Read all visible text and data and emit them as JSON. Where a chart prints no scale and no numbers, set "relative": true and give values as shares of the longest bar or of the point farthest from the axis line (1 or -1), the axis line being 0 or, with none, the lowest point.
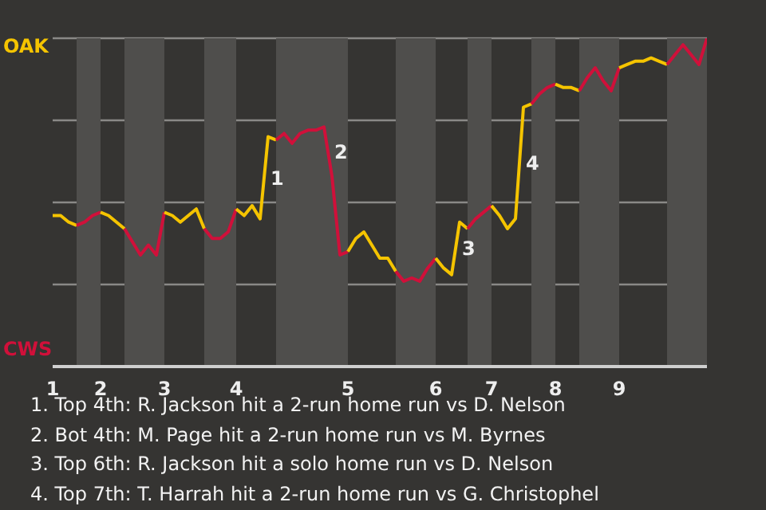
{
  "chart_data": {
    "type": "line",
    "relative": true,
    "categories": [
      "1",
      null,
      null,
      null,
      null,
      null,
      "2",
      null,
      null,
      null,
      null,
      null,
      null,
      null,
      "3",
      null,
      null,
      null,
      null,
      null,
      null,
      null,
      null,
      "4",
      null,
      null,
      null,
      null,
      null,
      null,
      null,
      null,
      null,
      null,
      null,
      null,
      null,
      "5",
      null,
      null,
      null,
      null,
      null,
      null,
      null,
      null,
      null,
      null,
      "6",
      null,
      null,
      null,
      null,
      null,
      null,
      "7",
      null,
      null,
      null,
      null,
      null,
      null,
      null,
      "8",
      null,
      null,
      null,
      null,
      null,
      null,
      null,
      "9",
      null,
      null,
      null,
      null,
      null,
      null,
      null,
      null,
      null,
      null,
      null
    ],
    "grid": "y",
    "marker": "none",
    "line_style": "solid",
    "series": [
      {
        "name": "OAK",
        "color": "#f5c400",
        "values": [
          0.46,
          0.46,
          0.44,
          0.43,
          null,
          null,
          null,
          null,
          null,
          null,
          null,
          null,
          null,
          null,
          null,
          null,
          null,
          null,
          null,
          null,
          null,
          null,
          null,
          null,
          null,
          null,
          null,
          null,
          null,
          null,
          null,
          null,
          null,
          null,
          null,
          null,
          null,
          null,
          null,
          null,
          null,
          null,
          null,
          null,
          null,
          null,
          null,
          null,
          null,
          null,
          null,
          null,
          null,
          null,
          null,
          null,
          null,
          null,
          null,
          null,
          null,
          null,
          null,
          null,
          null,
          null,
          null,
          null,
          null,
          null,
          null,
          null,
          null,
          null,
          null,
          null,
          null,
          null,
          null,
          null,
          null,
          null,
          null
        ]
      },
      {
        "name": "CWS",
        "color": "#d0103a",
        "values": [
          null,
          null,
          null,
          0.43,
          0.44,
          0.46,
          0.47,
          null,
          null,
          null,
          null,
          null,
          null,
          null,
          null,
          null,
          null,
          null,
          null,
          null,
          null,
          null,
          null,
          null,
          null,
          null,
          null,
          null,
          null,
          null,
          null,
          null,
          null,
          null,
          null,
          null,
          null,
          null,
          null,
          null,
          null,
          null,
          null,
          null,
          null,
          null,
          null,
          null,
          null,
          null,
          null,
          null,
          null,
          null,
          null,
          null,
          null,
          null,
          null,
          null,
          null,
          null,
          null,
          null,
          null,
          null,
          null,
          null,
          null,
          null,
          null,
          null,
          null,
          null,
          null,
          null,
          null,
          null,
          null,
          null,
          null,
          null,
          null
        ]
      },
      {
        "color": "#f5c400",
        "values": [
          null,
          null,
          null,
          null,
          null,
          null,
          0.47,
          0.46,
          0.44,
          0.42,
          null,
          null,
          null,
          null,
          null,
          null,
          null,
          null,
          null,
          null,
          null,
          null,
          null,
          null,
          null,
          null,
          null,
          null,
          null,
          null,
          null,
          null,
          null,
          null,
          null,
          null,
          null,
          null,
          null,
          null,
          null,
          null,
          null,
          null,
          null,
          null,
          null,
          null,
          null,
          null,
          null,
          null,
          null,
          null,
          null,
          null,
          null,
          null,
          null,
          null,
          null,
          null,
          null,
          null,
          null,
          null,
          null,
          null,
          null,
          null,
          null,
          null,
          null,
          null,
          null,
          null,
          null,
          null,
          null,
          null,
          null,
          null,
          null
        ]
      },
      {
        "color": "#d0103a",
        "values": [
          null,
          null,
          null,
          null,
          null,
          null,
          null,
          null,
          null,
          0.42,
          0.38,
          0.34,
          0.37,
          0.34,
          0.47,
          null,
          null,
          null,
          null,
          null,
          null,
          null,
          null,
          null,
          null,
          null,
          null,
          null,
          null,
          null,
          null,
          null,
          null,
          null,
          null,
          null,
          null,
          null,
          null,
          null,
          null,
          null,
          null,
          null,
          null,
          null,
          null,
          null,
          null,
          null,
          null,
          null,
          null,
          null,
          null,
          null,
          null,
          null,
          null,
          null,
          null,
          null,
          null,
          null,
          null,
          null,
          null,
          null,
          null,
          null,
          null,
          null,
          null,
          null,
          null,
          null,
          null,
          null,
          null,
          null,
          null,
          null,
          null
        ]
      },
      {
        "color": "#f5c400",
        "values": [
          null,
          null,
          null,
          null,
          null,
          null,
          null,
          null,
          null,
          null,
          null,
          null,
          null,
          null,
          0.47,
          0.46,
          0.44,
          0.46,
          0.48,
          0.42,
          null,
          null,
          null,
          null,
          null,
          null,
          null,
          null,
          null,
          null,
          null,
          null,
          null,
          null,
          null,
          null,
          null,
          null,
          null,
          null,
          null,
          null,
          null,
          null,
          null,
          null,
          null,
          null,
          null,
          null,
          null,
          null,
          null,
          null,
          null,
          null,
          null,
          null,
          null,
          null,
          null,
          null,
          null,
          null,
          null,
          null,
          null,
          null,
          null,
          null,
          null,
          null,
          null,
          null,
          null,
          null,
          null,
          null,
          null,
          null,
          null,
          null,
          null
        ]
      },
      {
        "color": "#d0103a",
        "values": [
          null,
          null,
          null,
          null,
          null,
          null,
          null,
          null,
          null,
          null,
          null,
          null,
          null,
          null,
          null,
          null,
          null,
          null,
          null,
          0.42,
          0.39,
          0.39,
          0.41,
          0.48,
          null,
          null,
          null,
          null,
          null,
          null,
          null,
          null,
          null,
          null,
          null,
          null,
          null,
          null,
          null,
          null,
          null,
          null,
          null,
          null,
          null,
          null,
          null,
          null,
          null,
          null,
          null,
          null,
          null,
          null,
          null,
          null,
          null,
          null,
          null,
          null,
          null,
          null,
          null,
          null,
          null,
          null,
          null,
          null,
          null,
          null,
          null,
          null,
          null,
          null,
          null,
          null,
          null,
          null,
          null,
          null,
          null,
          null,
          null
        ]
      },
      {
        "color": "#f5c400",
        "values": [
          null,
          null,
          null,
          null,
          null,
          null,
          null,
          null,
          null,
          null,
          null,
          null,
          null,
          null,
          null,
          null,
          null,
          null,
          null,
          null,
          null,
          null,
          null,
          0.48,
          0.46,
          0.49,
          0.45,
          0.7,
          0.69,
          null,
          null,
          null,
          null,
          null,
          null,
          null,
          null,
          null,
          null,
          null,
          null,
          null,
          null,
          null,
          null,
          null,
          null,
          null,
          null,
          null,
          null,
          null,
          null,
          null,
          null,
          null,
          null,
          null,
          null,
          null,
          null,
          null,
          null,
          null,
          null,
          null,
          null,
          null,
          null,
          null,
          null,
          null,
          null,
          null,
          null,
          null,
          null,
          null,
          null,
          null,
          null,
          null,
          null
        ]
      },
      {
        "color": "#d0103a",
        "values": [
          null,
          null,
          null,
          null,
          null,
          null,
          null,
          null,
          null,
          null,
          null,
          null,
          null,
          null,
          null,
          null,
          null,
          null,
          null,
          null,
          null,
          null,
          null,
          null,
          null,
          null,
          null,
          null,
          0.69,
          0.71,
          0.68,
          0.71,
          0.72,
          0.72,
          0.73,
          0.58,
          0.34,
          0.35,
          null,
          null,
          null,
          null,
          null,
          null,
          null,
          null,
          null,
          null,
          null,
          null,
          null,
          null,
          null,
          null,
          null,
          null,
          null,
          null,
          null,
          null,
          null,
          null,
          null,
          null,
          null,
          null,
          null,
          null,
          null,
          null,
          null,
          null,
          null,
          null,
          null,
          null,
          null,
          null,
          null,
          null,
          null,
          null,
          null
        ]
      },
      {
        "color": "#f5c400",
        "values": [
          null,
          null,
          null,
          null,
          null,
          null,
          null,
          null,
          null,
          null,
          null,
          null,
          null,
          null,
          null,
          null,
          null,
          null,
          null,
          null,
          null,
          null,
          null,
          null,
          null,
          null,
          null,
          null,
          null,
          null,
          null,
          null,
          null,
          null,
          null,
          null,
          null,
          0.35,
          0.39,
          0.41,
          0.37,
          0.33,
          0.33,
          0.29,
          null,
          null,
          null,
          null,
          null,
          null,
          null,
          null,
          null,
          null,
          null,
          null,
          null,
          null,
          null,
          null,
          null,
          null,
          null,
          null,
          null,
          null,
          null,
          null,
          null,
          null,
          null,
          null,
          null,
          null,
          null,
          null,
          null,
          null,
          null,
          null,
          null,
          null,
          null
        ]
      },
      {
        "color": "#d0103a",
        "values": [
          null,
          null,
          null,
          null,
          null,
          null,
          null,
          null,
          null,
          null,
          null,
          null,
          null,
          null,
          null,
          null,
          null,
          null,
          null,
          null,
          null,
          null,
          null,
          null,
          null,
          null,
          null,
          null,
          null,
          null,
          null,
          null,
          null,
          null,
          null,
          null,
          null,
          null,
          null,
          null,
          null,
          null,
          null,
          0.29,
          0.26,
          0.27,
          0.26,
          0.3,
          0.33,
          null,
          null,
          null,
          null,
          null,
          null,
          null,
          null,
          null,
          null,
          null,
          null,
          null,
          null,
          null,
          null,
          null,
          null,
          null,
          null,
          null,
          null,
          null,
          null,
          null,
          null,
          null,
          null,
          null,
          null,
          null,
          null,
          null,
          null
        ]
      },
      {
        "color": "#f5c400",
        "values": [
          null,
          null,
          null,
          null,
          null,
          null,
          null,
          null,
          null,
          null,
          null,
          null,
          null,
          null,
          null,
          null,
          null,
          null,
          null,
          null,
          null,
          null,
          null,
          null,
          null,
          null,
          null,
          null,
          null,
          null,
          null,
          null,
          null,
          null,
          null,
          null,
          null,
          null,
          null,
          null,
          null,
          null,
          null,
          null,
          null,
          null,
          null,
          null,
          0.33,
          0.3,
          0.28,
          0.44,
          0.42,
          null,
          null,
          null,
          null,
          null,
          null,
          null,
          null,
          null,
          null,
          null,
          null,
          null,
          null,
          null,
          null,
          null,
          null,
          null,
          null,
          null,
          null,
          null,
          null,
          null,
          null,
          null,
          null,
          null,
          null
        ]
      },
      {
        "color": "#d0103a",
        "values": [
          null,
          null,
          null,
          null,
          null,
          null,
          null,
          null,
          null,
          null,
          null,
          null,
          null,
          null,
          null,
          null,
          null,
          null,
          null,
          null,
          null,
          null,
          null,
          null,
          null,
          null,
          null,
          null,
          null,
          null,
          null,
          null,
          null,
          null,
          null,
          null,
          null,
          null,
          null,
          null,
          null,
          null,
          null,
          null,
          null,
          null,
          null,
          null,
          null,
          null,
          null,
          null,
          0.42,
          0.45,
          0.47,
          0.49,
          null,
          null,
          null,
          null,
          null,
          null,
          null,
          null,
          null,
          null,
          null,
          null,
          null,
          null,
          null,
          null,
          null,
          null,
          null,
          null,
          null,
          null,
          null,
          null,
          null,
          null,
          null
        ]
      },
      {
        "color": "#f5c400",
        "values": [
          null,
          null,
          null,
          null,
          null,
          null,
          null,
          null,
          null,
          null,
          null,
          null,
          null,
          null,
          null,
          null,
          null,
          null,
          null,
          null,
          null,
          null,
          null,
          null,
          null,
          null,
          null,
          null,
          null,
          null,
          null,
          null,
          null,
          null,
          null,
          null,
          null,
          null,
          null,
          null,
          null,
          null,
          null,
          null,
          null,
          null,
          null,
          null,
          null,
          null,
          null,
          null,
          null,
          null,
          null,
          0.49,
          0.46,
          0.42,
          0.45,
          0.79,
          0.8,
          null,
          null,
          null,
          null,
          null,
          null,
          null,
          null,
          null,
          null,
          null,
          null,
          null,
          null,
          null,
          null,
          null,
          null,
          null,
          null,
          null,
          null
        ]
      },
      {
        "color": "#d0103a",
        "values": [
          null,
          null,
          null,
          null,
          null,
          null,
          null,
          null,
          null,
          null,
          null,
          null,
          null,
          null,
          null,
          null,
          null,
          null,
          null,
          null,
          null,
          null,
          null,
          null,
          null,
          null,
          null,
          null,
          null,
          null,
          null,
          null,
          null,
          null,
          null,
          null,
          null,
          null,
          null,
          null,
          null,
          null,
          null,
          null,
          null,
          null,
          null,
          null,
          null,
          null,
          null,
          null,
          null,
          null,
          null,
          null,
          null,
          null,
          null,
          null,
          0.8,
          0.83,
          0.85,
          0.86,
          null,
          null,
          null,
          null,
          null,
          null,
          null,
          null,
          null,
          null,
          null,
          null,
          null,
          null,
          null,
          null,
          null,
          null,
          null
        ]
      },
      {
        "color": "#f5c400",
        "values": [
          null,
          null,
          null,
          null,
          null,
          null,
          null,
          null,
          null,
          null,
          null,
          null,
          null,
          null,
          null,
          null,
          null,
          null,
          null,
          null,
          null,
          null,
          null,
          null,
          null,
          null,
          null,
          null,
          null,
          null,
          null,
          null,
          null,
          null,
          null,
          null,
          null,
          null,
          null,
          null,
          null,
          null,
          null,
          null,
          null,
          null,
          null,
          null,
          null,
          null,
          null,
          null,
          null,
          null,
          null,
          null,
          null,
          null,
          null,
          null,
          null,
          null,
          null,
          0.86,
          0.85,
          0.85,
          0.84,
          null,
          null,
          null,
          null,
          null,
          null,
          null,
          null,
          null,
          null,
          null,
          null,
          null,
          null,
          null,
          null
        ]
      },
      {
        "color": "#d0103a",
        "values": [
          null,
          null,
          null,
          null,
          null,
          null,
          null,
          null,
          null,
          null,
          null,
          null,
          null,
          null,
          null,
          null,
          null,
          null,
          null,
          null,
          null,
          null,
          null,
          null,
          null,
          null,
          null,
          null,
          null,
          null,
          null,
          null,
          null,
          null,
          null,
          null,
          null,
          null,
          null,
          null,
          null,
          null,
          null,
          null,
          null,
          null,
          null,
          null,
          null,
          null,
          null,
          null,
          null,
          null,
          null,
          null,
          null,
          null,
          null,
          null,
          null,
          null,
          null,
          null,
          null,
          null,
          0.84,
          0.88,
          0.91,
          0.87,
          0.84,
          0.91,
          null,
          null,
          null,
          null,
          null,
          null,
          null,
          null,
          null,
          null,
          null
        ]
      },
      {
        "color": "#f5c400",
        "values": [
          null,
          null,
          null,
          null,
          null,
          null,
          null,
          null,
          null,
          null,
          null,
          null,
          null,
          null,
          null,
          null,
          null,
          null,
          null,
          null,
          null,
          null,
          null,
          null,
          null,
          null,
          null,
          null,
          null,
          null,
          null,
          null,
          null,
          null,
          null,
          null,
          null,
          null,
          null,
          null,
          null,
          null,
          null,
          null,
          null,
          null,
          null,
          null,
          null,
          null,
          null,
          null,
          null,
          null,
          null,
          null,
          null,
          null,
          null,
          null,
          null,
          null,
          null,
          null,
          null,
          null,
          null,
          null,
          null,
          null,
          null,
          0.91,
          0.92,
          0.93,
          0.93,
          0.94,
          0.93,
          0.92,
          null,
          null,
          null,
          null,
          null
        ]
      },
      {
        "color": "#d0103a",
        "values": [
          null,
          null,
          null,
          null,
          null,
          null,
          null,
          null,
          null,
          null,
          null,
          null,
          null,
          null,
          null,
          null,
          null,
          null,
          null,
          null,
          null,
          null,
          null,
          null,
          null,
          null,
          null,
          null,
          null,
          null,
          null,
          null,
          null,
          null,
          null,
          null,
          null,
          null,
          null,
          null,
          null,
          null,
          null,
          null,
          null,
          null,
          null,
          null,
          null,
          null,
          null,
          null,
          null,
          null,
          null,
          null,
          null,
          null,
          null,
          null,
          null,
          null,
          null,
          null,
          null,
          null,
          null,
          null,
          null,
          null,
          null,
          null,
          null,
          null,
          null,
          null,
          null,
          0.92,
          0.95,
          0.98,
          0.95,
          0.92,
          1.0
        ]
      }
    ],
    "annotations": [
      {
        "text": "1"
      },
      {
        "text": "2"
      },
      {
        "text": "3"
      },
      {
        "text": "4"
      },
      "1. Top 4th: R. Jackson hit a 2-run home run vs D. Nelson",
      "2. Bot 4th: M. Page hit a 2-run home run vs M. Byrnes",
      "3. Top 6th: R. Jackson hit a solo home run vs D. Nelson",
      "4. Top 7th: T. Harrah hit a 2-run home run vs G. Christophel"
    ]
  }
}
